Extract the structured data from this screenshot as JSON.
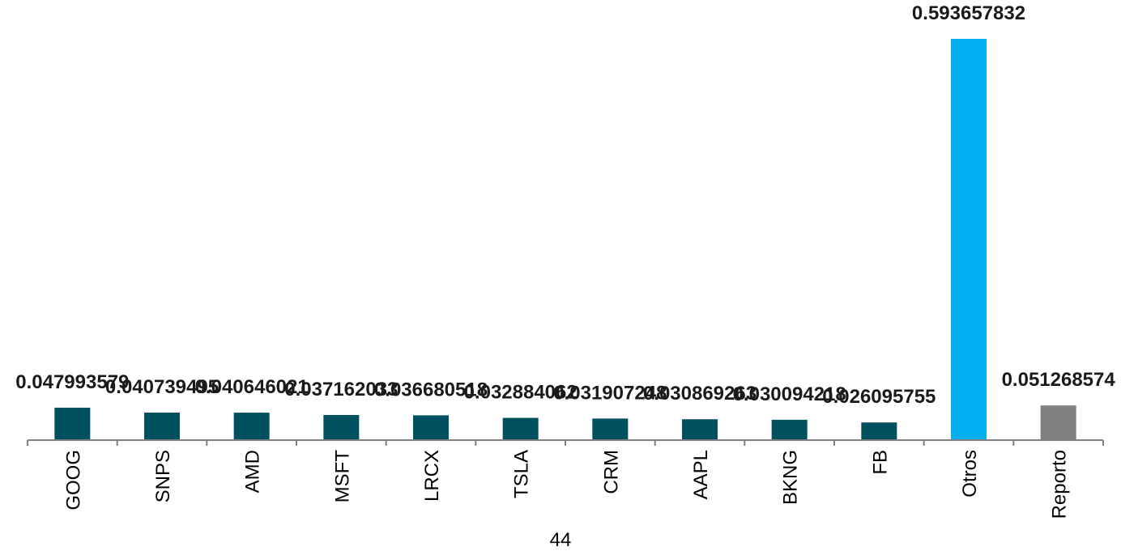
{
  "chart_data": {
    "type": "bar",
    "categories": [
      "GOOG",
      "SNPS",
      "AMD",
      "MSFT",
      "LRCX",
      "TSLA",
      "CRM",
      "AAPL",
      "BKNG",
      "FB",
      "Otros",
      "Reporto"
    ],
    "values": [
      0.047993579,
      0.040739495,
      0.040646021,
      0.037162033,
      0.036680518,
      0.032884062,
      0.031907248,
      0.030869263,
      0.030094218,
      0.026095755,
      0.593657832,
      0.051268574
    ],
    "data_labels": [
      "0.047993579",
      "0.040739495",
      "0.040646021",
      "0.037162033",
      "0.036680518",
      "0.032884062",
      "0.031907248",
      "0.030869263",
      "0.030094218",
      "0.026095755",
      "0.593657832",
      "0.051268574"
    ],
    "colors": [
      "#00505f",
      "#00505f",
      "#00505f",
      "#00505f",
      "#00505f",
      "#00505f",
      "#00505f",
      "#00505f",
      "#00505f",
      "#00505f",
      "#00b0f0",
      "#808080"
    ],
    "title": "",
    "xlabel": "",
    "ylabel": "",
    "ylim": [
      0,
      0.6
    ],
    "grid": false,
    "legend": "none"
  },
  "footer": {
    "page_number": "44"
  }
}
